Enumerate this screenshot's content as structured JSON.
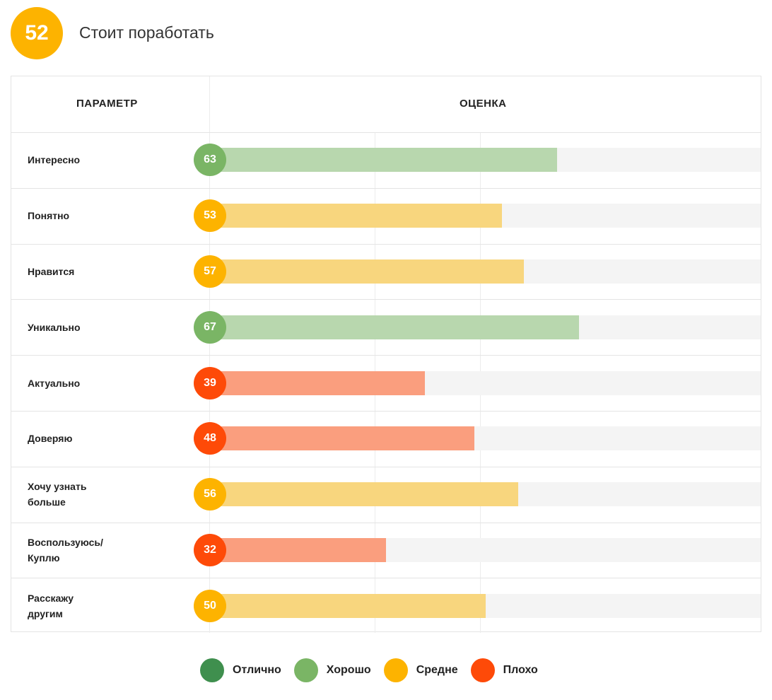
{
  "header": {
    "score": "52",
    "verdict": "Стоит поработать"
  },
  "colors": {
    "excellent": "#3f8f4e",
    "good": "#7ab565",
    "average": "#fdb300",
    "bad": "#fe4a08",
    "good_bar": "#b8d7ae",
    "average_bar": "#f8d67e",
    "bad_bar": "#fa9e7e",
    "track": "#f4f4f4"
  },
  "legend": [
    {
      "label": "Отлично",
      "level": "excellent"
    },
    {
      "label": "Хорошо",
      "level": "good"
    },
    {
      "label": "Средне",
      "level": "average"
    },
    {
      "label": "Плохо",
      "level": "bad"
    }
  ],
  "chart_data": {
    "type": "bar",
    "orientation": "horizontal",
    "title": "",
    "xlabel": "ОЦЕНКА",
    "ylabel": "ПАРАМЕТР",
    "xlim": [
      0,
      100
    ],
    "categories": [
      "Интересно",
      "Понятно",
      "Нравится",
      "Уникально",
      "Актуально",
      "Доверяю",
      "Хочу узнать больше",
      "Воспользуюсь/ Куплю",
      "Расскажу другим"
    ],
    "values": [
      63,
      53,
      57,
      67,
      39,
      48,
      56,
      32,
      50
    ],
    "levels": [
      "good",
      "average",
      "average",
      "good",
      "bad",
      "bad",
      "average",
      "bad",
      "average"
    ]
  }
}
